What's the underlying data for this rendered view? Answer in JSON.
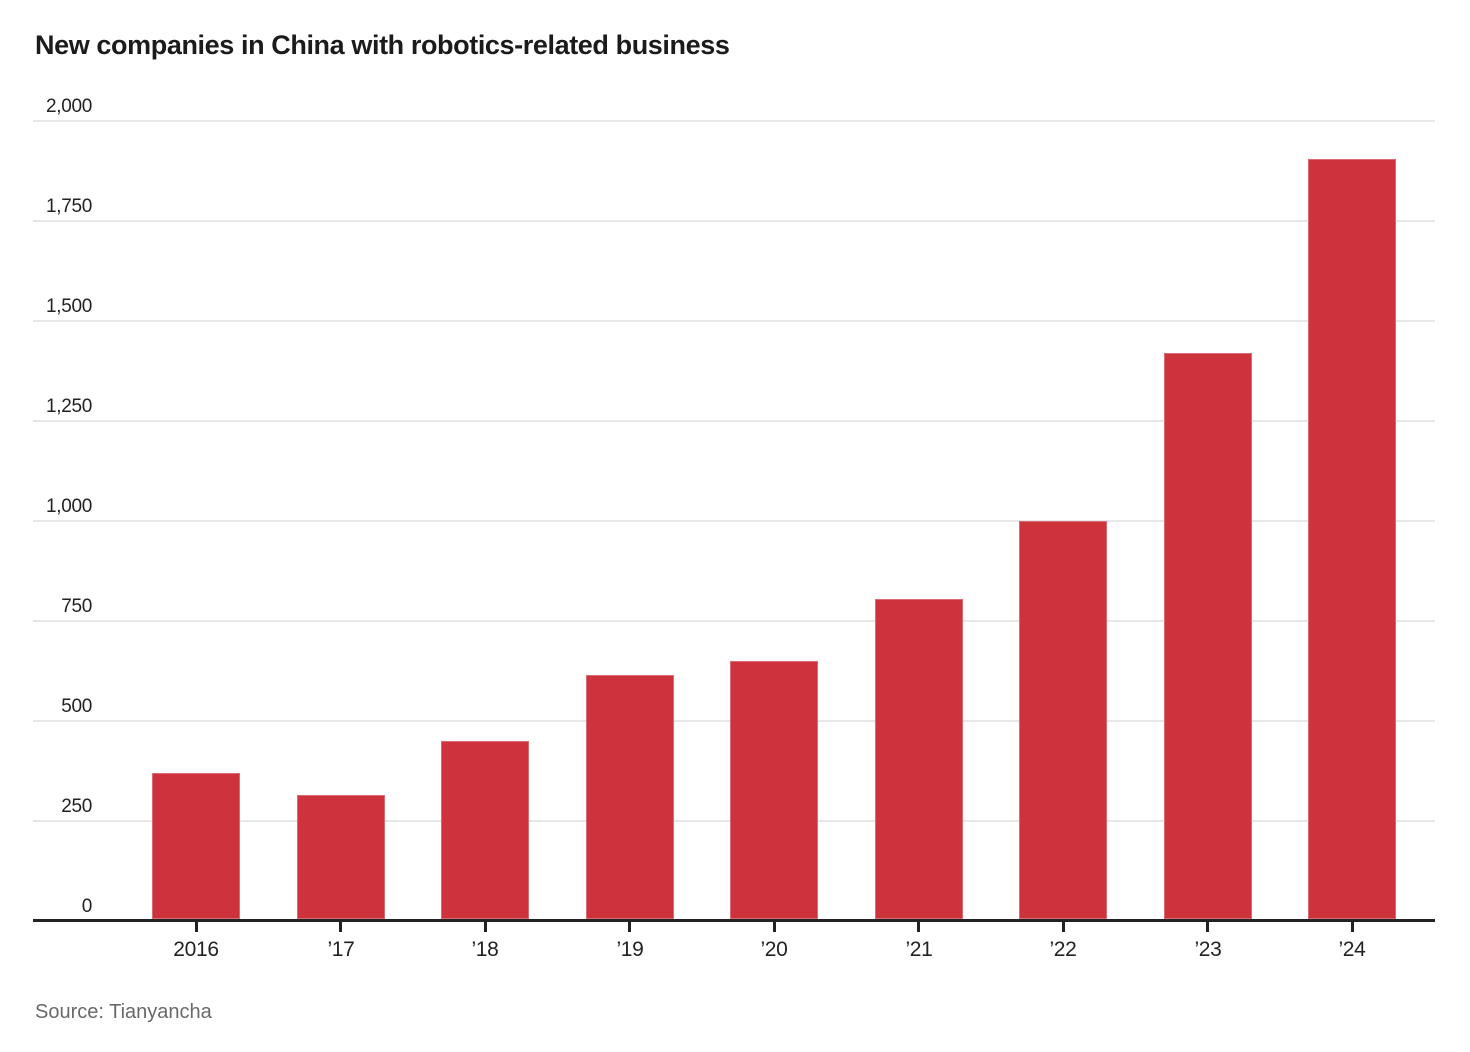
{
  "title": "New companies in China with robotics-related business",
  "source_note": "Source: Tianyancha",
  "chart_data": {
    "type": "bar",
    "title": "New companies in China with robotics-related business",
    "categories": [
      "2016",
      "’17",
      "’18",
      "’19",
      "’20",
      "’21",
      "’22",
      "’23",
      "’24"
    ],
    "values": [
      365,
      310,
      445,
      610,
      645,
      800,
      995,
      1415,
      1900
    ],
    "xlabel": "",
    "ylabel": "",
    "ylim": [
      0,
      2000
    ],
    "ytick_step": 250,
    "ytick_labels": [
      "0",
      "250",
      "500",
      "750",
      "1,000",
      "1,250",
      "1,500",
      "1,750",
      "2,000"
    ],
    "grid": "horizontal",
    "legend": "none",
    "source": "Source: Tianyancha"
  },
  "colors": {
    "background": "#ffffff",
    "bar": "#ce323c",
    "gridline": "#e7e7e7",
    "axis": "#222222",
    "label_text": "#222222",
    "title_text": "#1b1b1b",
    "source_text": "#696969"
  }
}
